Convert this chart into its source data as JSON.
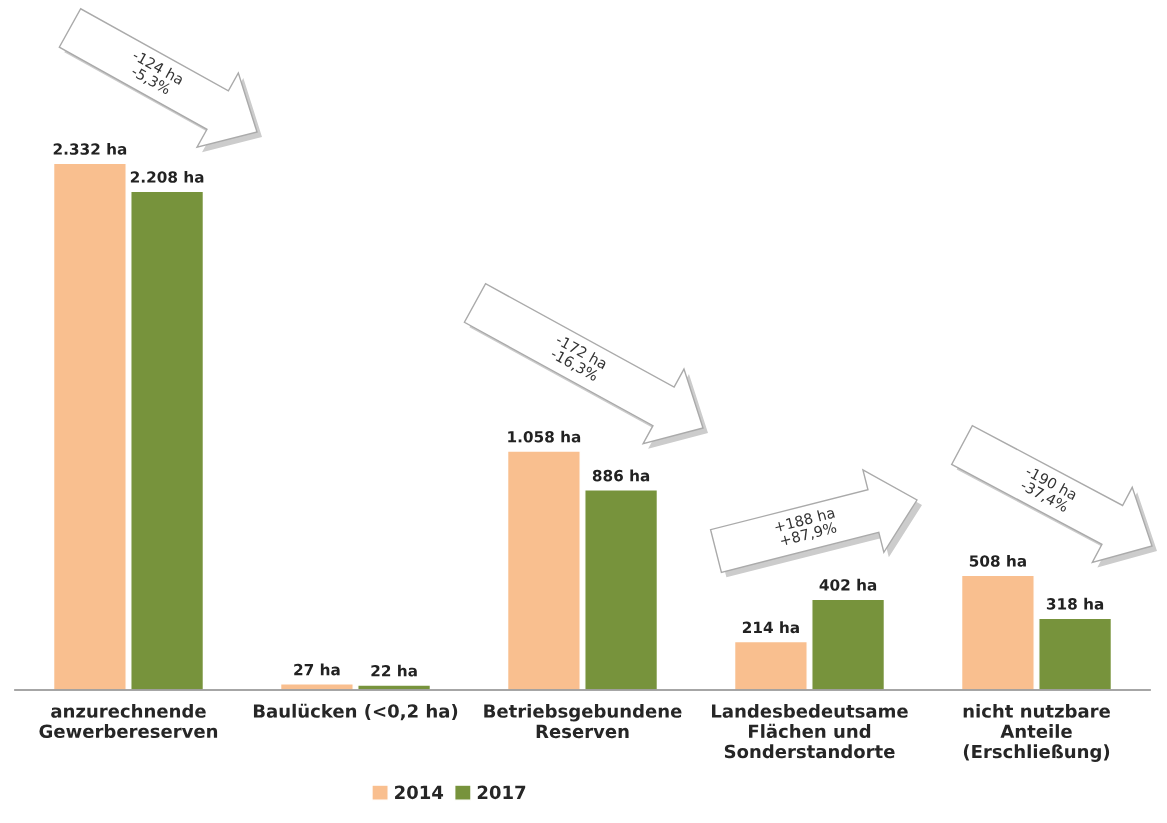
{
  "chart_data": {
    "type": "bar",
    "categories": [
      "anzurechnende\nGewerbereserven",
      "Baulücken (<0,2 ha)",
      "Betriebsgebundene\nReserven",
      "Landesbedeutsame\nFlächen und\nSonderstandorte",
      "nicht nutzbare\nAnteile\n(Erschließung)"
    ],
    "series": [
      {
        "name": "2014",
        "color": "#f9bf8f",
        "values": [
          2332,
          27,
          1058,
          214,
          508
        ],
        "value_labels": [
          "2.332 ha",
          "27 ha",
          "1.058 ha",
          "214 ha",
          "508 ha"
        ]
      },
      {
        "name": "2017",
        "color": "#77933c",
        "values": [
          2208,
          22,
          886,
          402,
          318
        ],
        "value_labels": [
          "2.208 ha",
          "22 ha",
          "886 ha",
          "402 ha",
          "318 ha"
        ]
      }
    ],
    "annotations": [
      "-124 ha\n-5,3%",
      "-172 ha\n-16,3%",
      "+188 ha\n+87,9%",
      "-190 ha\n-37,4%"
    ],
    "legend": "bottom",
    "grid": false
  }
}
